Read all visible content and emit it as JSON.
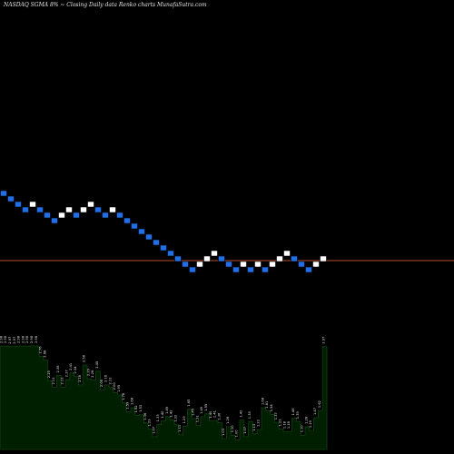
{
  "title": "NASDAQ SGMA 8% ~  Closing Daily data  Renko  charts MunafaSutra.com",
  "colors": {
    "background": "#000000",
    "brick_up": "#ffffff",
    "brick_down": "#1f6fe8",
    "brick_outline": "#000000",
    "reference_line": "#b8502a",
    "volume_fill": "#001f00",
    "volume_edge": "#124012",
    "volume_label": "#e0e0e0"
  },
  "chart_data": [
    {
      "type": "renko",
      "title": "NASDAQ SGMA 8% ~  Closing Daily data  Renko  charts MunafaSutra.com",
      "directions": [
        "down",
        "down",
        "down",
        "down",
        "up",
        "down",
        "down",
        "down",
        "up",
        "up",
        "down",
        "up",
        "up",
        "down",
        "down",
        "up",
        "down",
        "down",
        "down",
        "down",
        "down",
        "down",
        "down",
        "down",
        "down",
        "down",
        "down",
        "up",
        "up",
        "up",
        "down",
        "down",
        "down",
        "up",
        "down",
        "up",
        "down",
        "up",
        "up",
        "up",
        "down",
        "down",
        "down",
        "up",
        "up"
      ],
      "levels": [
        9,
        8,
        7,
        6,
        7,
        6,
        5,
        4,
        5,
        6,
        5,
        6,
        7,
        6,
        5,
        6,
        5,
        4,
        3,
        2,
        1,
        0,
        -1,
        -2,
        -3,
        -4,
        -5,
        -4,
        -3,
        -2,
        -3,
        -4,
        -5,
        -4,
        -5,
        -4,
        -5,
        -4,
        -3,
        -2,
        -3,
        -4,
        -5,
        -4,
        -3
      ],
      "reference_level": -3,
      "grid": false
    },
    {
      "type": "bar",
      "values": [
        2.98,
        2.98,
        2.97,
        2.97,
        2.98,
        2.98,
        2.98,
        2.98,
        2.98,
        2.76,
        2.68,
        2.25,
        2.11,
        2.36,
        2.11,
        2.27,
        2.41,
        2.34,
        2.16,
        2.58,
        2.29,
        2.26,
        2.45,
        2.06,
        2.16,
        2.11,
        2.0,
        1.95,
        1.78,
        1.59,
        1.68,
        1.52,
        1.53,
        1.36,
        1.23,
        1.07,
        1.33,
        1.4,
        1.49,
        1.42,
        1.32,
        1.11,
        1.29,
        1.65,
        1.45,
        1.31,
        1.49,
        1.55,
        1.4,
        1.41,
        1.36,
        1.03,
        1.28,
        1.1,
        1.0,
        1.42,
        1.07,
        1.39,
        1.13,
        1.22,
        1.68,
        1.61,
        1.54,
        1.37,
        1.23,
        1.18,
        1.18,
        1.46,
        1.39,
        1.1,
        1.28,
        1.2,
        1.47,
        1.62,
        2.97
      ],
      "labels": [
        "2.98",
        "2.98",
        "2.97",
        "2.97",
        "2.98",
        "2.98",
        "2.98",
        "2.98",
        "2.98",
        "2.76",
        "2.68",
        "2.25",
        "2.11",
        "2.36",
        "2.11",
        "2.27",
        "2.41",
        "2.34",
        "2.16",
        "2.58",
        "2.29",
        "2.26",
        "2.45",
        "2.06",
        "2.16",
        "2.11",
        "2.00",
        "1.95",
        "1.78",
        "1.59",
        "1.68",
        "1.52",
        "1.53",
        "1.36",
        "1.23",
        "1.07",
        "1.33",
        "1.40",
        "1.49",
        "1.42",
        "1.32",
        "1.11",
        "1.29",
        "1.65",
        "1.45",
        "1.31",
        "1.49",
        "1.55",
        "1.40",
        "1.41",
        "1.36",
        "1.03",
        "1.28",
        "1.10",
        "1.00",
        "1.42",
        "1.07",
        "1.39",
        "1.13",
        "1.22",
        "1.68",
        "1.61",
        "1.54",
        "1.37",
        "1.23",
        "1.18",
        "1.18",
        "1.46",
        "1.39",
        "1.10",
        "1.28",
        "1.20",
        "1.47",
        "1.62",
        "2.97"
      ]
    }
  ]
}
